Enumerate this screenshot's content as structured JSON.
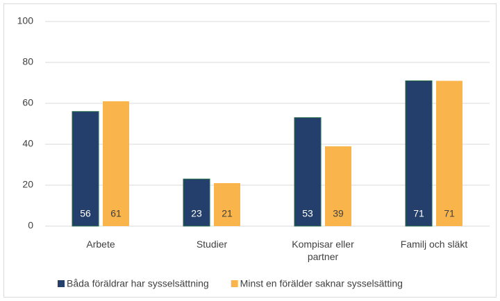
{
  "chart_data": {
    "type": "bar",
    "categories": [
      "Arbete",
      "Studier",
      "Kompisar eller partner",
      "Familj och släkt"
    ],
    "series": [
      {
        "name": "Båda föräldrar har sysselsättning",
        "color": "#243f6b",
        "values": [
          56,
          23,
          53,
          71
        ]
      },
      {
        "name": "Minst en förälder saknar sysselsätting",
        "color": "#f9b54c",
        "values": [
          61,
          21,
          39,
          71
        ]
      }
    ],
    "ylim": [
      0,
      100
    ],
    "yticks": [
      0,
      20,
      40,
      60,
      80,
      100
    ],
    "grid": true,
    "legend": "bottom"
  }
}
